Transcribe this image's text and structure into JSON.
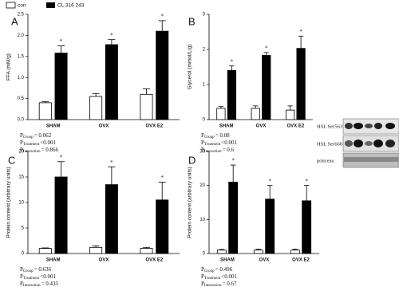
{
  "chart_data": [
    {
      "type": "bar",
      "letter": "A",
      "y_label": "FFA (mM/g)",
      "categories": [
        "SHAM",
        "OVX",
        "OVX E2"
      ],
      "series": [
        {
          "name": "con",
          "color": "#ffffff",
          "values": [
            0.4,
            0.55,
            0.6
          ],
          "errors": [
            0.03,
            0.07,
            0.13
          ]
        },
        {
          "name": "CL 316 243",
          "color": "#000000",
          "values": [
            1.58,
            1.78,
            2.1
          ],
          "errors": [
            0.17,
            0.12,
            0.25
          ],
          "star_labels": [
            "*",
            "*",
            "*"
          ]
        }
      ],
      "ylim": [
        0,
        2.5
      ],
      "yticks": [
        {
          "value": 0,
          "label": "0.0"
        },
        {
          "value": 0.5,
          "label": "0.5"
        },
        {
          "value": 1,
          "label": "1.0"
        },
        {
          "value": 1.5,
          "label": "1.5"
        },
        {
          "value": 2,
          "label": "2.0"
        },
        {
          "value": 2.5,
          "label": "2.5"
        }
      ],
      "stats": [
        {
          "symbol": "P",
          "sub": "Group",
          "text": "= 0.062"
        },
        {
          "symbol": "P",
          "sub": "Treatment",
          "text": "<0.001"
        },
        {
          "symbol": "P",
          "sub": "Interaction",
          "text": "= 0.866"
        }
      ]
    },
    {
      "type": "bar",
      "letter": "B",
      "y_label": "Glycerol (mmol/L/g)",
      "categories": [
        "SHAM",
        "OVX",
        "OVX E2"
      ],
      "series": [
        {
          "color": "#ffffff",
          "values": [
            0.32,
            0.32,
            0.27
          ],
          "errors": [
            0.05,
            0.07,
            0.12
          ]
        },
        {
          "color": "#000000",
          "values": [
            1.4,
            1.83,
            2.03
          ],
          "errors": [
            0.13,
            0.08,
            0.35
          ],
          "star_labels": [
            "*",
            "*",
            "*"
          ]
        }
      ],
      "ylim": [
        0,
        3
      ],
      "yticks": [
        0,
        1,
        2,
        3
      ],
      "stats": [
        {
          "symbol": "P",
          "sub": "Group",
          "text": "= 0.08"
        },
        {
          "symbol": "P",
          "sub": "Treatment",
          "text": "<0.001"
        },
        {
          "symbol": "P",
          "sub": "Interaction",
          "text": "= 0.6"
        }
      ]
    },
    {
      "type": "bar",
      "letter": "C",
      "y_label": "Protein content (arbitrary units)",
      "categories": [
        "SHAM",
        "OVX",
        "OVX E2"
      ],
      "series": [
        {
          "color": "#ffffff",
          "values": [
            1,
            1.2,
            1
          ],
          "errors": [
            0.1,
            0.3,
            0.2
          ]
        },
        {
          "color": "#000000",
          "values": [
            15,
            13.5,
            10.5
          ],
          "errors": [
            3,
            3.5,
            3.5
          ],
          "star_labels": [
            "*",
            "*",
            "*"
          ]
        }
      ],
      "ylim": [
        0,
        20
      ],
      "yticks": [
        0,
        5,
        10,
        15,
        20
      ],
      "stats": [
        {
          "symbol": "P",
          "sub": "Group",
          "text": "= 0.636"
        },
        {
          "symbol": "P",
          "sub": "Treatment",
          "text": "<0.001"
        },
        {
          "symbol": "P",
          "sub": "Interaction",
          "text": "= 0.435"
        }
      ]
    },
    {
      "type": "bar",
      "letter": "D",
      "y_label": "Protein content (arbitrary units)",
      "categories": [
        "SHAM",
        "OVX",
        "OVX E2"
      ],
      "series": [
        {
          "color": "#ffffff",
          "values": [
            1,
            1,
            1
          ],
          "errors": [
            0.2,
            0.3,
            0.3
          ]
        },
        {
          "color": "#000000",
          "values": [
            21,
            16,
            15.5
          ],
          "errors": [
            5,
            4,
            4.5
          ],
          "star_labels": [
            "*",
            "*",
            "*"
          ]
        }
      ],
      "ylim": [
        0,
        30
      ],
      "yticks": [
        0,
        10,
        20,
        30
      ],
      "stats": [
        {
          "symbol": "P",
          "sub": "Group",
          "text": "= 0.496"
        },
        {
          "symbol": "P",
          "sub": "Treatment",
          "text": "<0.001"
        },
        {
          "symbol": "P",
          "sub": "Interaction",
          "text": "= 0.67"
        }
      ]
    }
  ],
  "blot": {
    "rows": [
      "HSL Ser563",
      "HSL Ser660",
      "ponceau"
    ]
  }
}
